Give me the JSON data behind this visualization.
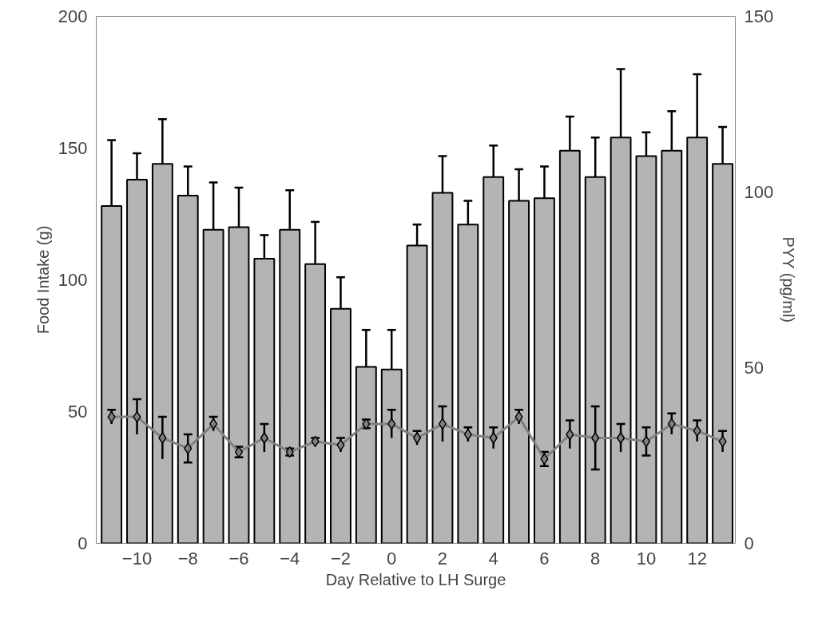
{
  "chart_data": {
    "type": "bar",
    "xlabel": "Day Relative to LH Surge",
    "ylabel": "Food Intake (g)",
    "y2label": "PYY (pg/ml)",
    "x": [
      -11,
      -10,
      -9,
      -8,
      -7,
      -6,
      -5,
      -4,
      -3,
      -2,
      -1,
      0,
      1,
      2,
      3,
      4,
      5,
      6,
      7,
      8,
      9,
      10,
      11,
      12,
      13
    ],
    "xlim": [
      -11.6,
      13.5
    ],
    "xticks": [
      -10,
      -8,
      -6,
      -4,
      -2,
      0,
      2,
      4,
      6,
      8,
      10,
      12
    ],
    "ylim": [
      0,
      200
    ],
    "yticks": [
      0,
      50,
      100,
      150,
      200
    ],
    "y2lim": [
      0,
      150
    ],
    "y2ticks": [
      0,
      50,
      100,
      150
    ],
    "grid": false,
    "series": [
      {
        "color": "#b4b4b4",
        "values": [
          128,
          138,
          144,
          132,
          119,
          120,
          108,
          119,
          106,
          89,
          67,
          66,
          113,
          133,
          121,
          139,
          130,
          131,
          149,
          139,
          154,
          147,
          149,
          154,
          144
        ],
        "errors": [
          [
            128,
            153
          ],
          [
            138,
            148
          ],
          [
            144,
            161
          ],
          [
            132,
            143
          ],
          [
            119,
            137
          ],
          [
            120,
            135
          ],
          [
            108,
            117
          ],
          [
            119,
            134
          ],
          [
            106,
            122
          ],
          [
            89,
            101
          ],
          [
            67,
            81
          ],
          [
            66,
            81
          ],
          [
            113,
            121
          ],
          [
            133,
            147
          ],
          [
            121,
            130
          ],
          [
            139,
            151
          ],
          [
            130,
            142
          ],
          [
            131,
            143
          ],
          [
            149,
            162
          ],
          [
            139,
            154
          ],
          [
            154,
            180
          ],
          [
            147,
            156
          ],
          [
            149,
            164
          ],
          [
            154,
            178
          ],
          [
            144,
            158
          ]
        ]
      },
      {
        "type": "line",
        "axis": "y2",
        "color": "#808080",
        "marker": "diamond",
        "line_style": "solid",
        "values": [
          36,
          36,
          30,
          27,
          34,
          26,
          30,
          26,
          29,
          28,
          34,
          34,
          30,
          34,
          31,
          30,
          36,
          24,
          31,
          30,
          30,
          29,
          34,
          32,
          29
        ],
        "errors": [
          2,
          5,
          6,
          4,
          2,
          1.5,
          4,
          1,
          1,
          2,
          1.2,
          4,
          2,
          5,
          2,
          3,
          2,
          2,
          4,
          9,
          4,
          4,
          3,
          3,
          3
        ]
      }
    ]
  }
}
